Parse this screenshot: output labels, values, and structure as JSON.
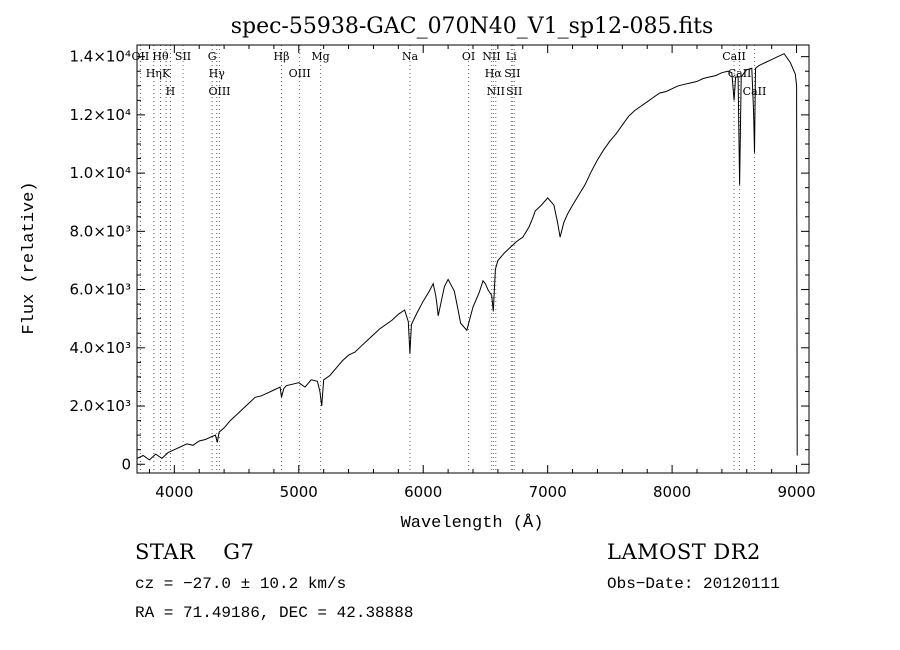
{
  "chart_data": {
    "type": "line",
    "title": "spec-55938-GAC_070N40_V1_sp12-085.fits",
    "xlabel": "Wavelength (Å)",
    "ylabel": "Flux (relative)",
    "xlim": [
      3700,
      9100
    ],
    "ylim": [
      -300,
      14400
    ],
    "x_ticks": [
      4000,
      5000,
      6000,
      7000,
      8000,
      9000
    ],
    "y_ticks": [
      {
        "value": 0,
        "label": "0"
      },
      {
        "value": 2000,
        "label": "2.0×10³"
      },
      {
        "value": 4000,
        "label": "4.0×10³"
      },
      {
        "value": 6000,
        "label": "6.0×10³"
      },
      {
        "value": 8000,
        "label": "8.0×10³"
      },
      {
        "value": 10000,
        "label": "1.0×10⁴"
      },
      {
        "value": 12000,
        "label": "1.2×10⁴"
      },
      {
        "value": 14000,
        "label": "1.4×10⁴"
      }
    ],
    "series": [
      {
        "name": "flux",
        "x": [
          3700,
          3750,
          3800,
          3850,
          3900,
          3950,
          4000,
          4050,
          4100,
          4150,
          4200,
          4250,
          4300,
          4330,
          4345,
          4360,
          4400,
          4450,
          4500,
          4550,
          4600,
          4650,
          4700,
          4750,
          4800,
          4850,
          4861,
          4880,
          4900,
          4950,
          5000,
          5050,
          5100,
          5150,
          5170,
          5184,
          5200,
          5250,
          5300,
          5350,
          5400,
          5450,
          5500,
          5550,
          5600,
          5650,
          5700,
          5750,
          5800,
          5850,
          5880,
          5893,
          5905,
          5950,
          6000,
          6050,
          6080,
          6100,
          6110,
          6120,
          6150,
          6170,
          6200,
          6250,
          6280,
          6300,
          6350,
          6400,
          6450,
          6480,
          6500,
          6520,
          6550,
          6563,
          6580,
          6600,
          6650,
          6700,
          6750,
          6800,
          6850,
          6880,
          6900,
          6950,
          7000,
          7050,
          7080,
          7100,
          7130,
          7160,
          7200,
          7250,
          7300,
          7350,
          7400,
          7450,
          7500,
          7550,
          7600,
          7650,
          7700,
          7750,
          7800,
          7850,
          7900,
          7950,
          8000,
          8050,
          8100,
          8150,
          8200,
          8250,
          8300,
          8350,
          8400,
          8450,
          8480,
          8498,
          8510,
          8530,
          8542,
          8555,
          8580,
          8600,
          8640,
          8655,
          8662,
          8670,
          8700,
          8750,
          8800,
          8850,
          8900,
          8950,
          8990,
          9000,
          9005
        ],
        "y": [
          200,
          300,
          150,
          350,
          200,
          400,
          500,
          600,
          700,
          650,
          800,
          850,
          950,
          1000,
          750,
          1100,
          1250,
          1500,
          1700,
          1900,
          2100,
          2300,
          2350,
          2450,
          2550,
          2650,
          2300,
          2600,
          2700,
          2750,
          2800,
          2650,
          2900,
          2850,
          2500,
          2000,
          2900,
          3050,
          3300,
          3550,
          3750,
          3850,
          4050,
          4250,
          4450,
          4650,
          4800,
          4950,
          5150,
          5300,
          4900,
          3800,
          4800,
          5200,
          5600,
          5950,
          6200,
          5800,
          5500,
          5100,
          5700,
          6100,
          6350,
          5950,
          5300,
          4850,
          4600,
          5400,
          5900,
          6300,
          6200,
          6000,
          5800,
          5250,
          6700,
          7000,
          7250,
          7450,
          7650,
          7800,
          8150,
          8450,
          8700,
          8900,
          9150,
          8900,
          8300,
          7800,
          8300,
          8600,
          8900,
          9250,
          9600,
          10050,
          10450,
          10800,
          11100,
          11350,
          11650,
          11950,
          12150,
          12300,
          12450,
          12600,
          12750,
          12800,
          12900,
          13000,
          13050,
          13100,
          13150,
          13250,
          13300,
          13350,
          13450,
          13500,
          13450,
          12500,
          13300,
          13300,
          9600,
          13300,
          13450,
          13550,
          13600,
          12100,
          10700,
          13600,
          13700,
          13800,
          13900,
          14000,
          14100,
          13800,
          13400,
          13000,
          300
        ]
      }
    ],
    "lines": [
      {
        "x": 3727,
        "style": "blue",
        "labels": [
          "OII"
        ]
      },
      {
        "x": 3835,
        "style": "blue",
        "labels": [
          "Hη"
        ]
      },
      {
        "x": 3889,
        "style": "blue",
        "labels": [
          "Hθ"
        ]
      },
      {
        "x": 3934,
        "style": "blue",
        "labels": [
          "K"
        ]
      },
      {
        "x": 3969,
        "style": "blue",
        "labels": [
          "H"
        ]
      },
      {
        "x": 4070,
        "style": "red",
        "labels": [
          "SII"
        ]
      },
      {
        "x": 4304,
        "style": "blue",
        "labels": [
          "G"
        ]
      },
      {
        "x": 4341,
        "style": "blue",
        "labels": [
          "Hγ"
        ]
      },
      {
        "x": 4363,
        "style": "red",
        "labels": [
          "OIII"
        ]
      },
      {
        "x": 4861,
        "style": "blue",
        "labels": [
          "Hβ"
        ]
      },
      {
        "x": 5007,
        "style": "red",
        "labels": [
          "OIII"
        ]
      },
      {
        "x": 5175,
        "style": "red",
        "labels": [
          "Mg"
        ]
      },
      {
        "x": 5893,
        "style": "red",
        "labels": [
          "Na"
        ]
      },
      {
        "x": 6364,
        "style": "red",
        "labels": [
          "OI"
        ]
      },
      {
        "x": 6548,
        "style": "red",
        "labels": [
          "NII"
        ]
      },
      {
        "x": 6563,
        "style": "red",
        "labels": [
          "Hα"
        ]
      },
      {
        "x": 6583,
        "style": "red",
        "labels": [
          "NII"
        ]
      },
      {
        "x": 6708,
        "style": "red",
        "labels": [
          "Li"
        ]
      },
      {
        "x": 6716,
        "style": "red",
        "labels": [
          "SII"
        ]
      },
      {
        "x": 6731,
        "style": "red",
        "labels": [
          "SII"
        ]
      },
      {
        "x": 8498,
        "style": "red",
        "labels": [
          "CaII"
        ]
      },
      {
        "x": 8542,
        "style": "red",
        "labels": [
          "CaII"
        ]
      },
      {
        "x": 8662,
        "style": "red",
        "labels": [
          "CaII"
        ]
      }
    ]
  },
  "info": {
    "object_type": "STAR",
    "subclass": "G7",
    "release": "LAMOST DR2",
    "cz": "cz = −27.0 ± 10.2 km/s",
    "obs_date": "Obs−Date: 20120111",
    "coords": "RA =  71.49186, DEC =  42.38888"
  },
  "colors": {
    "blue_line": "#4040ff",
    "red_line": "#ff3030",
    "spectrum": "#000000"
  }
}
